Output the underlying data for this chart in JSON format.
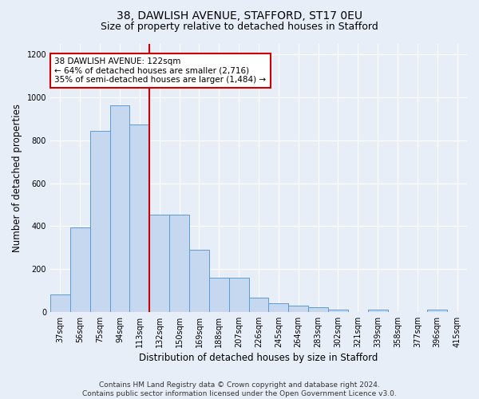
{
  "title1": "38, DAWLISH AVENUE, STAFFORD, ST17 0EU",
  "title2": "Size of property relative to detached houses in Stafford",
  "xlabel": "Distribution of detached houses by size in Stafford",
  "ylabel": "Number of detached properties",
  "categories": [
    "37sqm",
    "56sqm",
    "75sqm",
    "94sqm",
    "113sqm",
    "132sqm",
    "150sqm",
    "169sqm",
    "188sqm",
    "207sqm",
    "226sqm",
    "245sqm",
    "264sqm",
    "283sqm",
    "302sqm",
    "321sqm",
    "339sqm",
    "358sqm",
    "377sqm",
    "396sqm",
    "415sqm"
  ],
  "values": [
    80,
    395,
    845,
    965,
    875,
    455,
    455,
    290,
    160,
    160,
    65,
    40,
    30,
    20,
    10,
    0,
    10,
    0,
    0,
    10,
    0
  ],
  "bar_color": "#c5d8f0",
  "bar_edge_color": "#5b9bd5",
  "vline_index": 4,
  "vline_color": "#cc0000",
  "annotation_text": "38 DAWLISH AVENUE: 122sqm\n← 64% of detached houses are smaller (2,716)\n35% of semi-detached houses are larger (1,484) →",
  "annotation_box_color": "white",
  "annotation_border_color": "#cc0000",
  "ylim": [
    0,
    1250
  ],
  "yticks": [
    0,
    200,
    400,
    600,
    800,
    1000,
    1200
  ],
  "footer1": "Contains HM Land Registry data © Crown copyright and database right 2024.",
  "footer2": "Contains public sector information licensed under the Open Government Licence v3.0.",
  "bg_color": "#e8eef8",
  "plot_bg_color": "#e8eef8",
  "title_fontsize": 10,
  "subtitle_fontsize": 9,
  "axis_label_fontsize": 8.5,
  "tick_fontsize": 7,
  "footer_fontsize": 6.5,
  "annot_fontsize": 7.5
}
